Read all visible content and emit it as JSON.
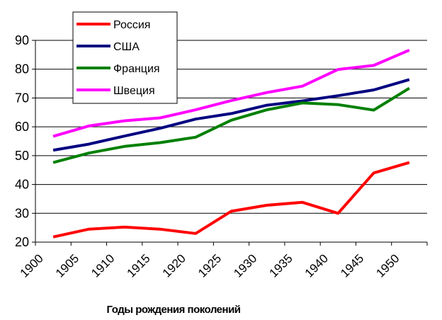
{
  "chart_data": {
    "type": "line",
    "x": [
      1902.5,
      1907.5,
      1912.5,
      1917.5,
      1922.5,
      1927.5,
      1932.5,
      1937.5,
      1942.5,
      1947.5,
      1952.5
    ],
    "xlim": [
      1900,
      1955
    ],
    "xticks": [
      "1900",
      "1905",
      "1910",
      "1915",
      "1920",
      "1925",
      "1930",
      "1935",
      "1940",
      "1945",
      "1950"
    ],
    "ylim": [
      20,
      90
    ],
    "yticks": [
      "20",
      "30",
      "40",
      "50",
      "60",
      "70",
      "80",
      "90"
    ],
    "xlabel": "Годы рождения поколений",
    "ylabel": "",
    "grid": "horizontal",
    "legend_position": "top-left",
    "series": [
      {
        "name": "Россия",
        "color": "#ff0000",
        "values": [
          21.8,
          24.5,
          25.2,
          24.5,
          23.0,
          30.7,
          32.8,
          33.8,
          30.0,
          44.0,
          47.6
        ]
      },
      {
        "name": "США",
        "color": "#000080",
        "values": [
          51.9,
          54.0,
          56.8,
          59.5,
          62.7,
          64.6,
          67.5,
          69.0,
          70.8,
          72.8,
          76.4
        ]
      },
      {
        "name": "Франция",
        "color": "#008000",
        "values": [
          47.6,
          50.9,
          53.2,
          54.5,
          56.4,
          62.3,
          65.9,
          68.3,
          67.7,
          65.8,
          73.4
        ]
      },
      {
        "name": "Швеция",
        "color": "#ff00ff",
        "values": [
          56.7,
          60.3,
          62.1,
          63.1,
          65.9,
          69.1,
          71.9,
          74.1,
          79.9,
          81.3,
          86.6
        ]
      }
    ]
  }
}
